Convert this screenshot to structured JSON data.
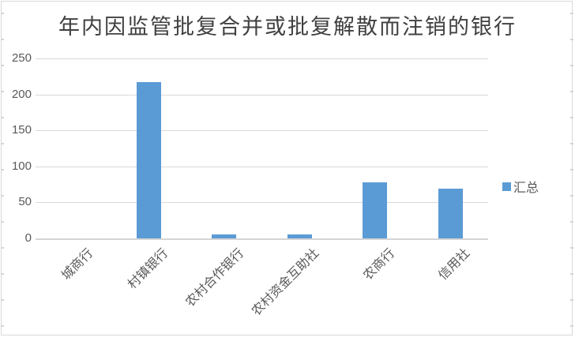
{
  "chart_data": {
    "type": "bar",
    "title": "年内因监管批复合并或批复解散而注销的银行",
    "categories": [
      "城商行",
      "村镇银行",
      "农村合作银行",
      "农村资金互助社",
      "农商行",
      "信用社"
    ],
    "series": [
      {
        "name": "汇总",
        "values": [
          0,
          217,
          5,
          6,
          78,
          69
        ]
      }
    ],
    "ylim": [
      0,
      250
    ],
    "yticks": [
      0,
      50,
      100,
      150,
      200,
      250
    ],
    "grid": true,
    "legend_position": "right",
    "x_label_rotation_deg": -45,
    "bar_color": "#5B9BD5",
    "gridline_color": "#D9D9D9",
    "axis_text_color": "#595959",
    "title_color": "#404040"
  }
}
